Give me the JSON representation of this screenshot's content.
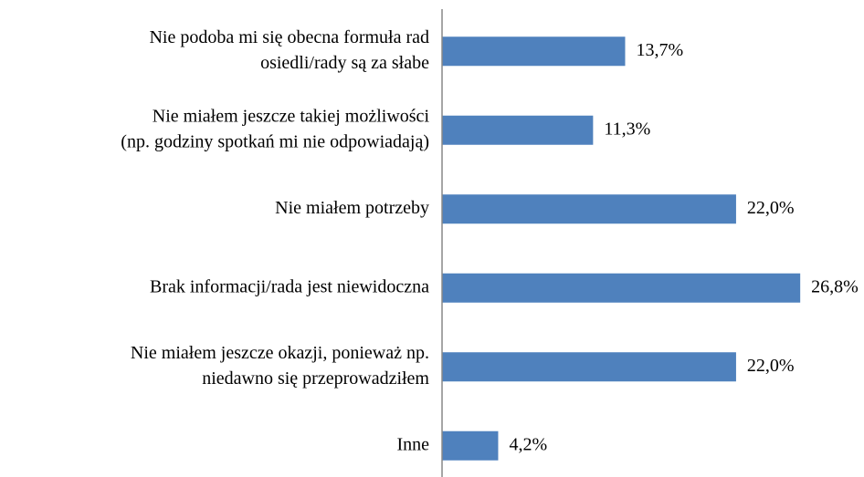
{
  "chart_data": {
    "type": "bar",
    "orientation": "horizontal",
    "categories": [
      [
        "Nie podoba mi się obecna formuła rad",
        "osiedli/rady są za słabe"
      ],
      [
        "Nie miałem jeszcze takiej możliwości",
        "(np. godziny spotkań mi nie odpowiadają)"
      ],
      [
        "Nie miałem potrzeby"
      ],
      [
        "Brak informacji/rada jest niewidoczna"
      ],
      [
        "Nie miałem jeszcze okazji, ponieważ np.",
        "niedawno się przeprowadziłem"
      ],
      [
        "Inne"
      ]
    ],
    "values": [
      13.7,
      11.3,
      22.0,
      26.8,
      22.0,
      4.2
    ],
    "value_labels": [
      "13,7%",
      "11,3%",
      "22,0%",
      "26,8%",
      "22,0%",
      "4,2%"
    ],
    "color": "#4f81bd",
    "xlim": [
      0,
      30
    ]
  }
}
